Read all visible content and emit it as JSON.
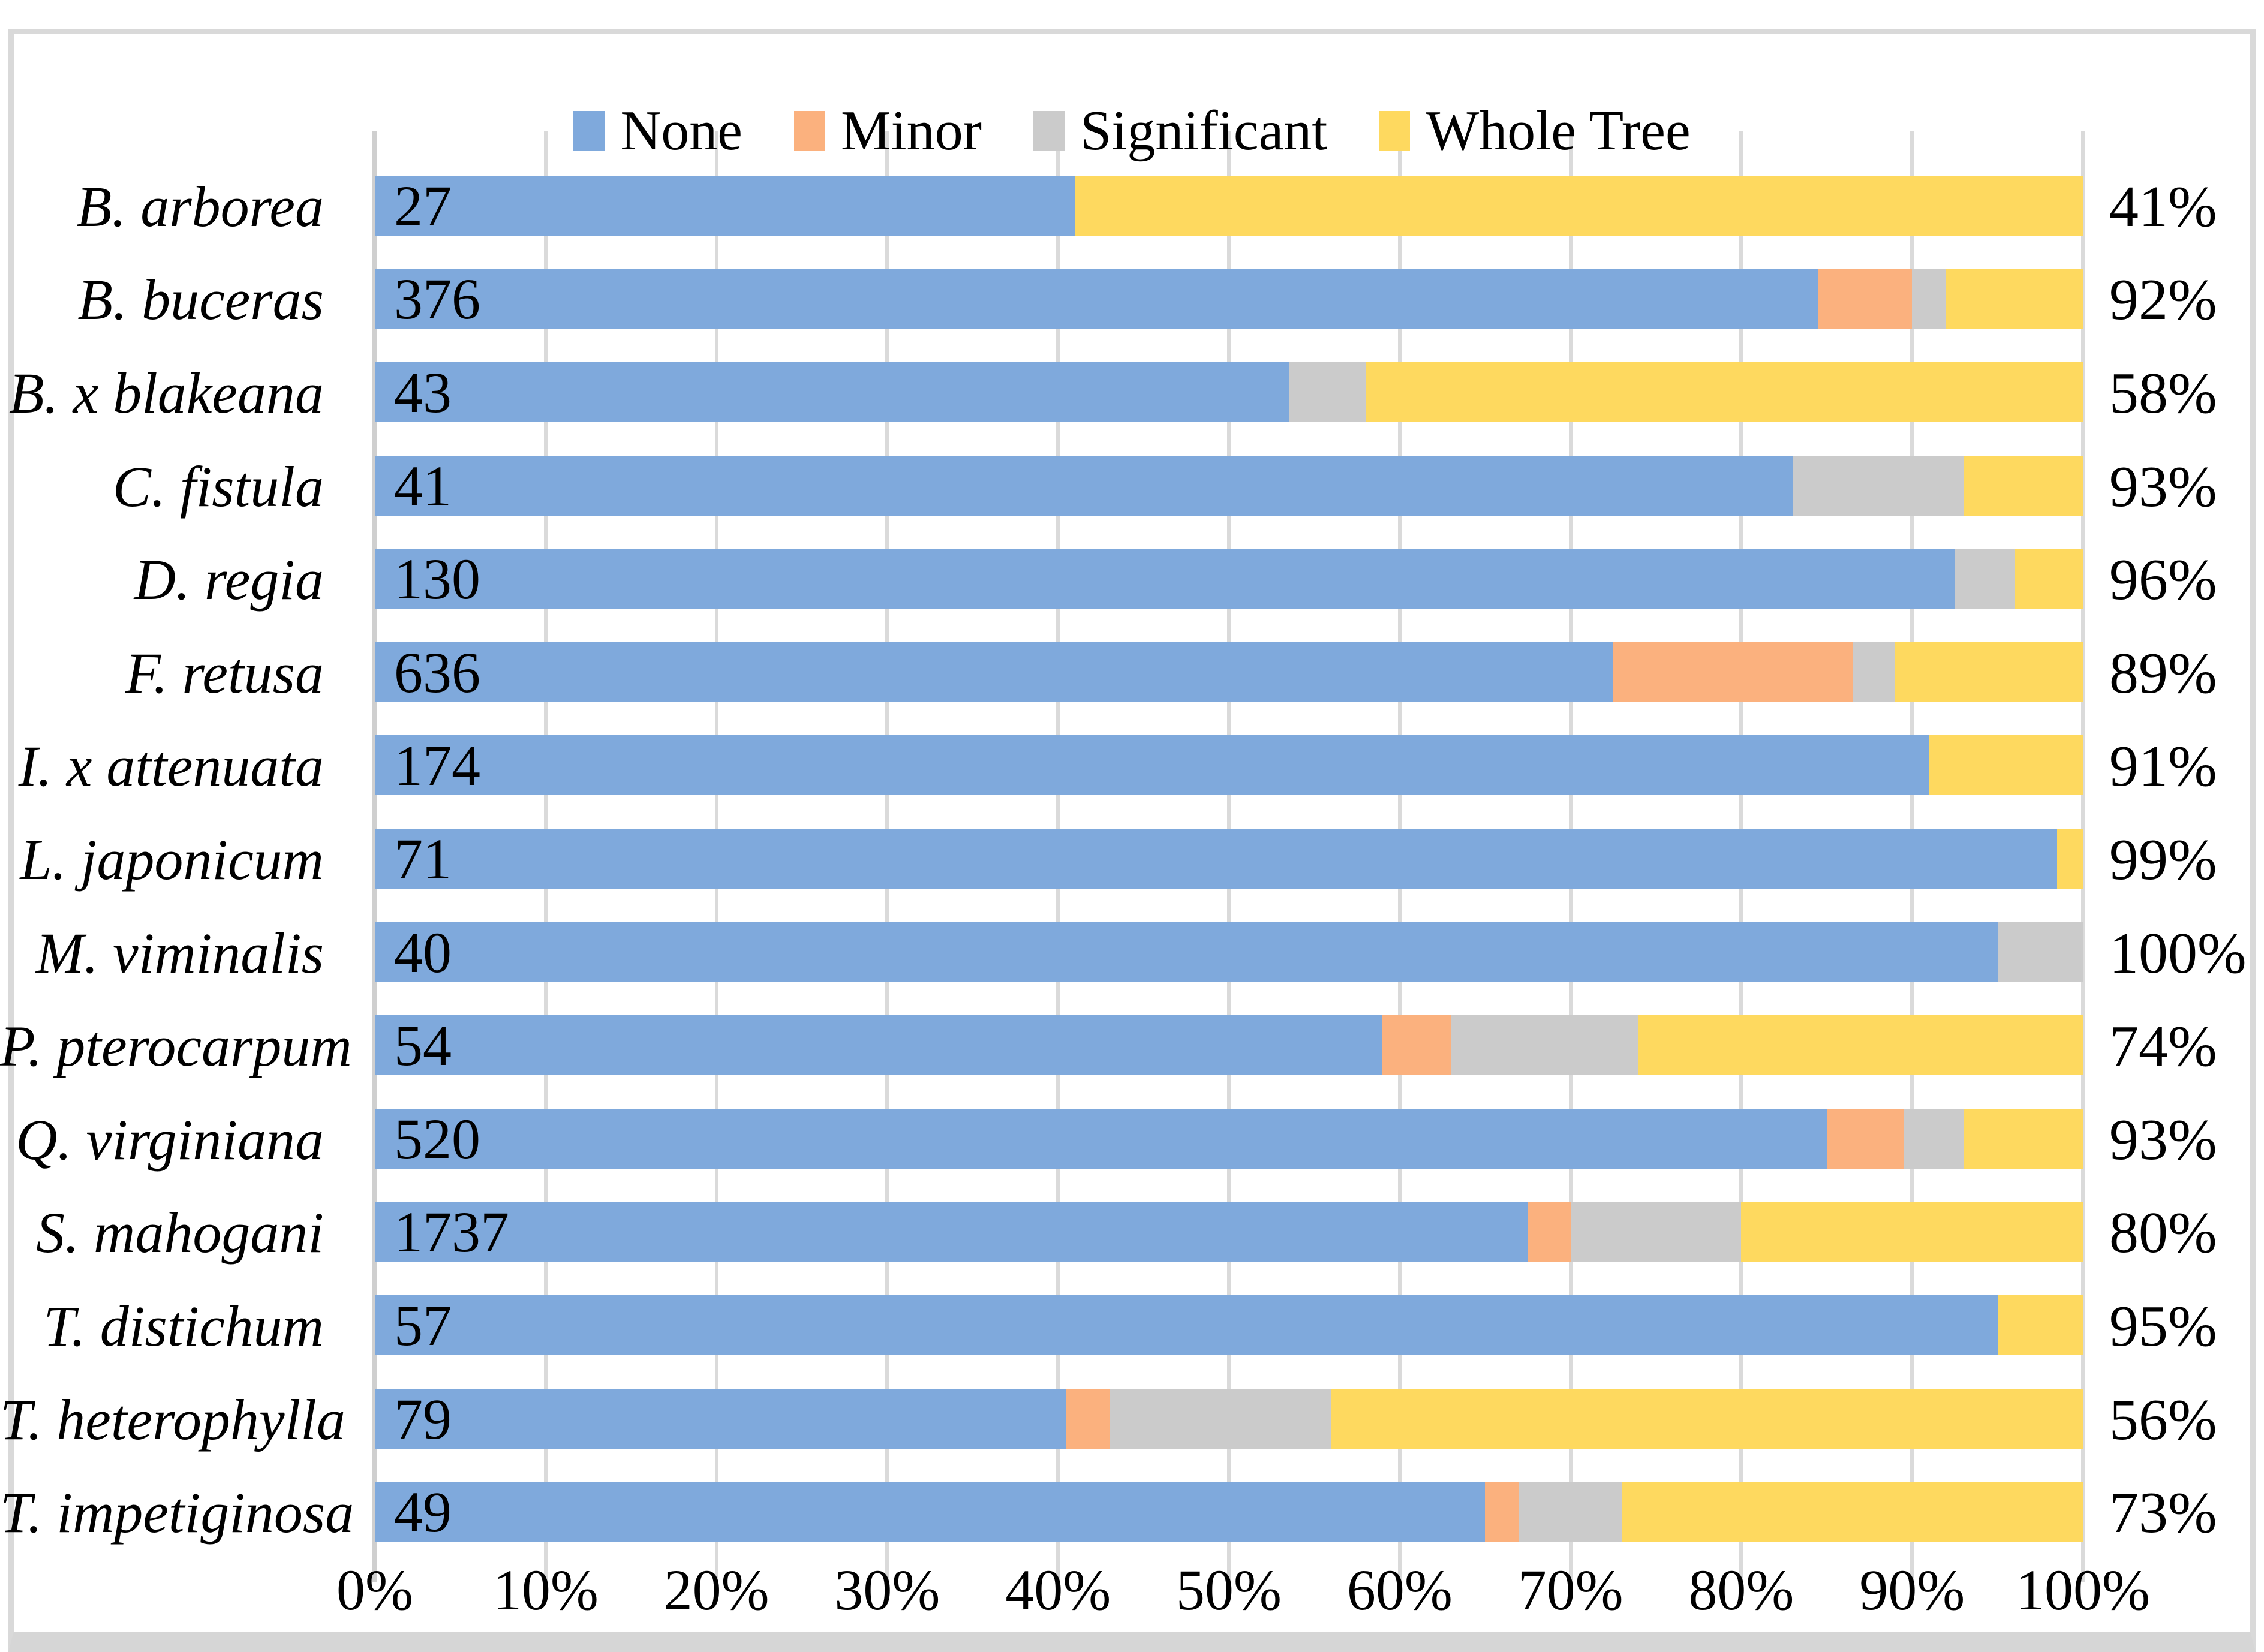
{
  "chart_data": {
    "type": "bar",
    "orientation": "horizontal",
    "stacked": true,
    "title": "",
    "xlabel": "",
    "ylabel": "",
    "xlim": [
      0,
      100
    ],
    "grid": true,
    "legend_position": "top",
    "legend": [
      "None",
      "Minor",
      "Significant",
      "Whole Tree"
    ],
    "colors": {
      "None": "#7FA9DC",
      "Minor": "#FBB17E",
      "Significant": "#CBCBCB",
      "Whole Tree": "#FED95F"
    },
    "x_axis": {
      "ticks": [
        "0%",
        "10%",
        "20%",
        "30%",
        "40%",
        "50%",
        "60%",
        "70%",
        "80%",
        "90%",
        "100%"
      ],
      "tick_positions": [
        0,
        10,
        20,
        30,
        40,
        50,
        60,
        70,
        80,
        90,
        100
      ]
    },
    "rows": [
      {
        "species": "B. arborea",
        "count": "27",
        "values": [
          41,
          0,
          0,
          59
        ],
        "pct_label": "41%"
      },
      {
        "species": "B. buceras",
        "count": "376",
        "values": [
          84.5,
          5.5,
          2,
          8
        ],
        "pct_label": "92%"
      },
      {
        "species": "B. x blakeana",
        "count": "43",
        "values": [
          53.5,
          0,
          4.5,
          42
        ],
        "pct_label": "58%"
      },
      {
        "species": "C. fistula",
        "count": "41",
        "values": [
          83,
          0,
          10,
          7
        ],
        "pct_label": "93%"
      },
      {
        "species": "D. regia",
        "count": "130",
        "values": [
          92.5,
          0,
          3.5,
          4
        ],
        "pct_label": "96%"
      },
      {
        "species": "F. retusa",
        "count": "636",
        "values": [
          72.5,
          14,
          2.5,
          11
        ],
        "pct_label": "89%"
      },
      {
        "species": "I. x attenuata",
        "count": "174",
        "values": [
          91,
          0,
          0,
          9
        ],
        "pct_label": "91%"
      },
      {
        "species": "L. japonicum",
        "count": "71",
        "values": [
          98.5,
          0,
          0,
          1.5
        ],
        "pct_label": "99%"
      },
      {
        "species": "M. viminalis",
        "count": "40",
        "values": [
          95,
          0,
          5,
          0
        ],
        "pct_label": "100%"
      },
      {
        "species": "P. pterocarpum",
        "count": "54",
        "values": [
          59,
          4,
          11,
          26
        ],
        "pct_label": "74%"
      },
      {
        "species": "Q. virginiana",
        "count": "520",
        "values": [
          85,
          4.5,
          3.5,
          7
        ],
        "pct_label": "93%"
      },
      {
        "species": "S. mahogani",
        "count": "1737",
        "values": [
          67.5,
          2.5,
          10,
          20
        ],
        "pct_label": "80%"
      },
      {
        "species": "T. distichum",
        "count": "57",
        "values": [
          95,
          0,
          0,
          5
        ],
        "pct_label": "95%"
      },
      {
        "species": "T. heterophylla",
        "count": "79",
        "values": [
          40.5,
          2.5,
          13,
          44
        ],
        "pct_label": "56%"
      },
      {
        "species": "T. impetiginosa",
        "count": "49",
        "values": [
          65,
          2,
          6,
          27
        ],
        "pct_label": "73%"
      }
    ]
  }
}
